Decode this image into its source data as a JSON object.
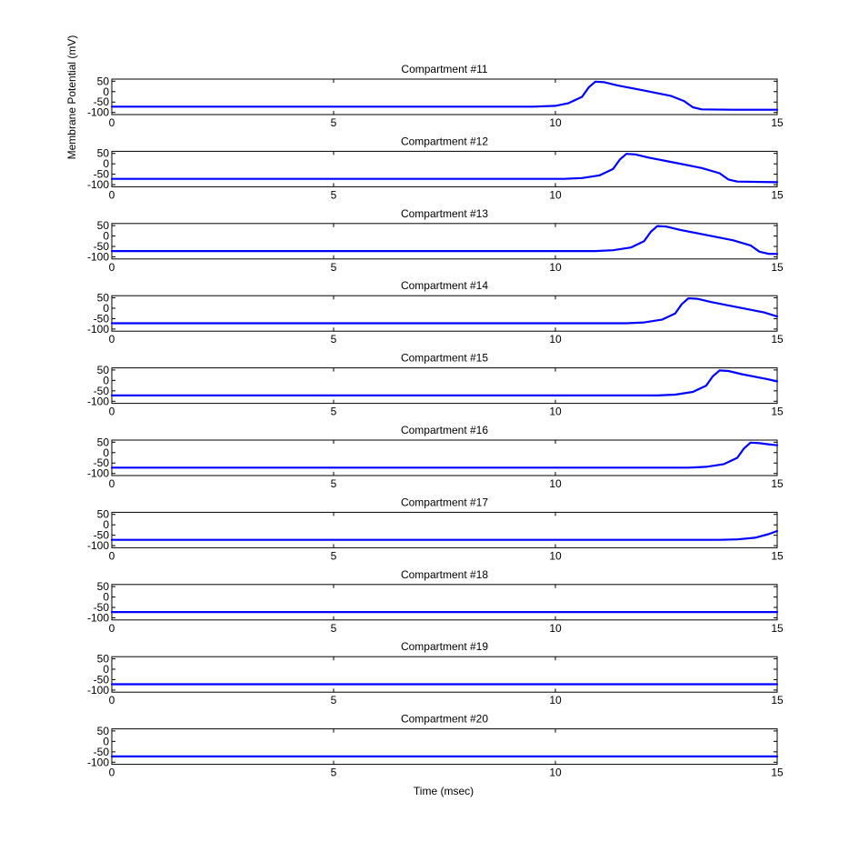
{
  "figure": {
    "ylabel": "Membrane Potential (mV)",
    "xlabel": "Time (msec)"
  },
  "colors": {
    "trace": "#0000ff",
    "axes": "#000000",
    "background": "#ffffff"
  },
  "chart_data": [
    {
      "type": "line",
      "title": "Compartment #11",
      "xlim": [
        0,
        15
      ],
      "ylim": [
        -110,
        60
      ],
      "xticks": [
        0,
        5,
        10,
        15
      ],
      "yticks": [
        50,
        0,
        -50,
        -100
      ],
      "grid": false,
      "series": [
        {
          "x": [
            0,
            9.5,
            10.0,
            10.3,
            10.6,
            10.75,
            10.9,
            11.1,
            11.4,
            12.0,
            12.6,
            12.9,
            13.1,
            13.3,
            14.0,
            15.0
          ],
          "y": [
            -72,
            -72,
            -68,
            -55,
            -25,
            20,
            48,
            45,
            30,
            5,
            -20,
            -45,
            -75,
            -85,
            -87,
            -87
          ]
        }
      ]
    },
    {
      "type": "line",
      "title": "Compartment #12",
      "xlim": [
        0,
        15
      ],
      "ylim": [
        -110,
        60
      ],
      "xticks": [
        0,
        5,
        10,
        15
      ],
      "yticks": [
        50,
        0,
        -50,
        -100
      ],
      "grid": false,
      "series": [
        {
          "x": [
            0,
            10.2,
            10.6,
            11.0,
            11.3,
            11.45,
            11.6,
            11.8,
            12.1,
            12.7,
            13.3,
            13.7,
            13.9,
            14.1,
            15.0
          ],
          "y": [
            -72,
            -72,
            -68,
            -55,
            -25,
            20,
            48,
            45,
            30,
            5,
            -20,
            -45,
            -75,
            -85,
            -88
          ]
        }
      ]
    },
    {
      "type": "line",
      "title": "Compartment #13",
      "xlim": [
        0,
        15
      ],
      "ylim": [
        -110,
        60
      ],
      "xticks": [
        0,
        5,
        10,
        15
      ],
      "yticks": [
        50,
        0,
        -50,
        -100
      ],
      "grid": false,
      "series": [
        {
          "x": [
            0,
            10.9,
            11.3,
            11.7,
            12.0,
            12.15,
            12.3,
            12.5,
            12.8,
            13.4,
            14.0,
            14.4,
            14.6,
            14.8,
            15.0
          ],
          "y": [
            -72,
            -72,
            -68,
            -55,
            -25,
            20,
            48,
            45,
            30,
            5,
            -20,
            -45,
            -75,
            -85,
            -86
          ]
        }
      ]
    },
    {
      "type": "line",
      "title": "Compartment #14",
      "xlim": [
        0,
        15
      ],
      "ylim": [
        -110,
        60
      ],
      "xticks": [
        0,
        5,
        10,
        15
      ],
      "yticks": [
        50,
        0,
        -50,
        -100
      ],
      "grid": false,
      "series": [
        {
          "x": [
            0,
            11.6,
            12.0,
            12.4,
            12.7,
            12.85,
            13.0,
            13.2,
            13.5,
            14.1,
            14.7,
            15.0
          ],
          "y": [
            -72,
            -72,
            -68,
            -55,
            -25,
            20,
            48,
            45,
            30,
            5,
            -20,
            -40
          ]
        }
      ]
    },
    {
      "type": "line",
      "title": "Compartment #15",
      "xlim": [
        0,
        15
      ],
      "ylim": [
        -110,
        60
      ],
      "xticks": [
        0,
        5,
        10,
        15
      ],
      "yticks": [
        50,
        0,
        -50,
        -100
      ],
      "grid": false,
      "series": [
        {
          "x": [
            0,
            12.3,
            12.7,
            13.1,
            13.4,
            13.55,
            13.7,
            13.9,
            14.2,
            14.8,
            15.0
          ],
          "y": [
            -72,
            -72,
            -68,
            -55,
            -25,
            20,
            48,
            45,
            30,
            5,
            -5
          ]
        }
      ]
    },
    {
      "type": "line",
      "title": "Compartment #16",
      "xlim": [
        0,
        15
      ],
      "ylim": [
        -110,
        60
      ],
      "xticks": [
        0,
        5,
        10,
        15
      ],
      "yticks": [
        50,
        0,
        -50,
        -100
      ],
      "grid": false,
      "series": [
        {
          "x": [
            0,
            13.0,
            13.4,
            13.8,
            14.1,
            14.25,
            14.4,
            14.6,
            14.8,
            15.0
          ],
          "y": [
            -72,
            -72,
            -68,
            -55,
            -25,
            20,
            48,
            45,
            40,
            35
          ]
        }
      ]
    },
    {
      "type": "line",
      "title": "Compartment #17",
      "xlim": [
        0,
        15
      ],
      "ylim": [
        -110,
        60
      ],
      "xticks": [
        0,
        5,
        10,
        15
      ],
      "yticks": [
        50,
        0,
        -50,
        -100
      ],
      "grid": false,
      "series": [
        {
          "x": [
            0,
            13.7,
            14.1,
            14.5,
            14.8,
            15.0
          ],
          "y": [
            -72,
            -72,
            -70,
            -62,
            -45,
            -30
          ]
        }
      ]
    },
    {
      "type": "line",
      "title": "Compartment #18",
      "xlim": [
        0,
        15
      ],
      "ylim": [
        -110,
        60
      ],
      "xticks": [
        0,
        5,
        10,
        15
      ],
      "yticks": [
        50,
        0,
        -50,
        -100
      ],
      "grid": false,
      "series": [
        {
          "x": [
            0,
            15.0
          ],
          "y": [
            -72,
            -72
          ]
        }
      ]
    },
    {
      "type": "line",
      "title": "Compartment #19",
      "xlim": [
        0,
        15
      ],
      "ylim": [
        -110,
        60
      ],
      "xticks": [
        0,
        5,
        10,
        15
      ],
      "yticks": [
        50,
        0,
        -50,
        -100
      ],
      "grid": false,
      "series": [
        {
          "x": [
            0,
            15.0
          ],
          "y": [
            -72,
            -72
          ]
        }
      ]
    },
    {
      "type": "line",
      "title": "Compartment #20",
      "xlim": [
        0,
        15
      ],
      "ylim": [
        -110,
        60
      ],
      "xticks": [
        0,
        5,
        10,
        15
      ],
      "yticks": [
        50,
        0,
        -50,
        -100
      ],
      "grid": false,
      "series": [
        {
          "x": [
            0,
            15.0
          ],
          "y": [
            -72,
            -72
          ]
        }
      ]
    }
  ]
}
